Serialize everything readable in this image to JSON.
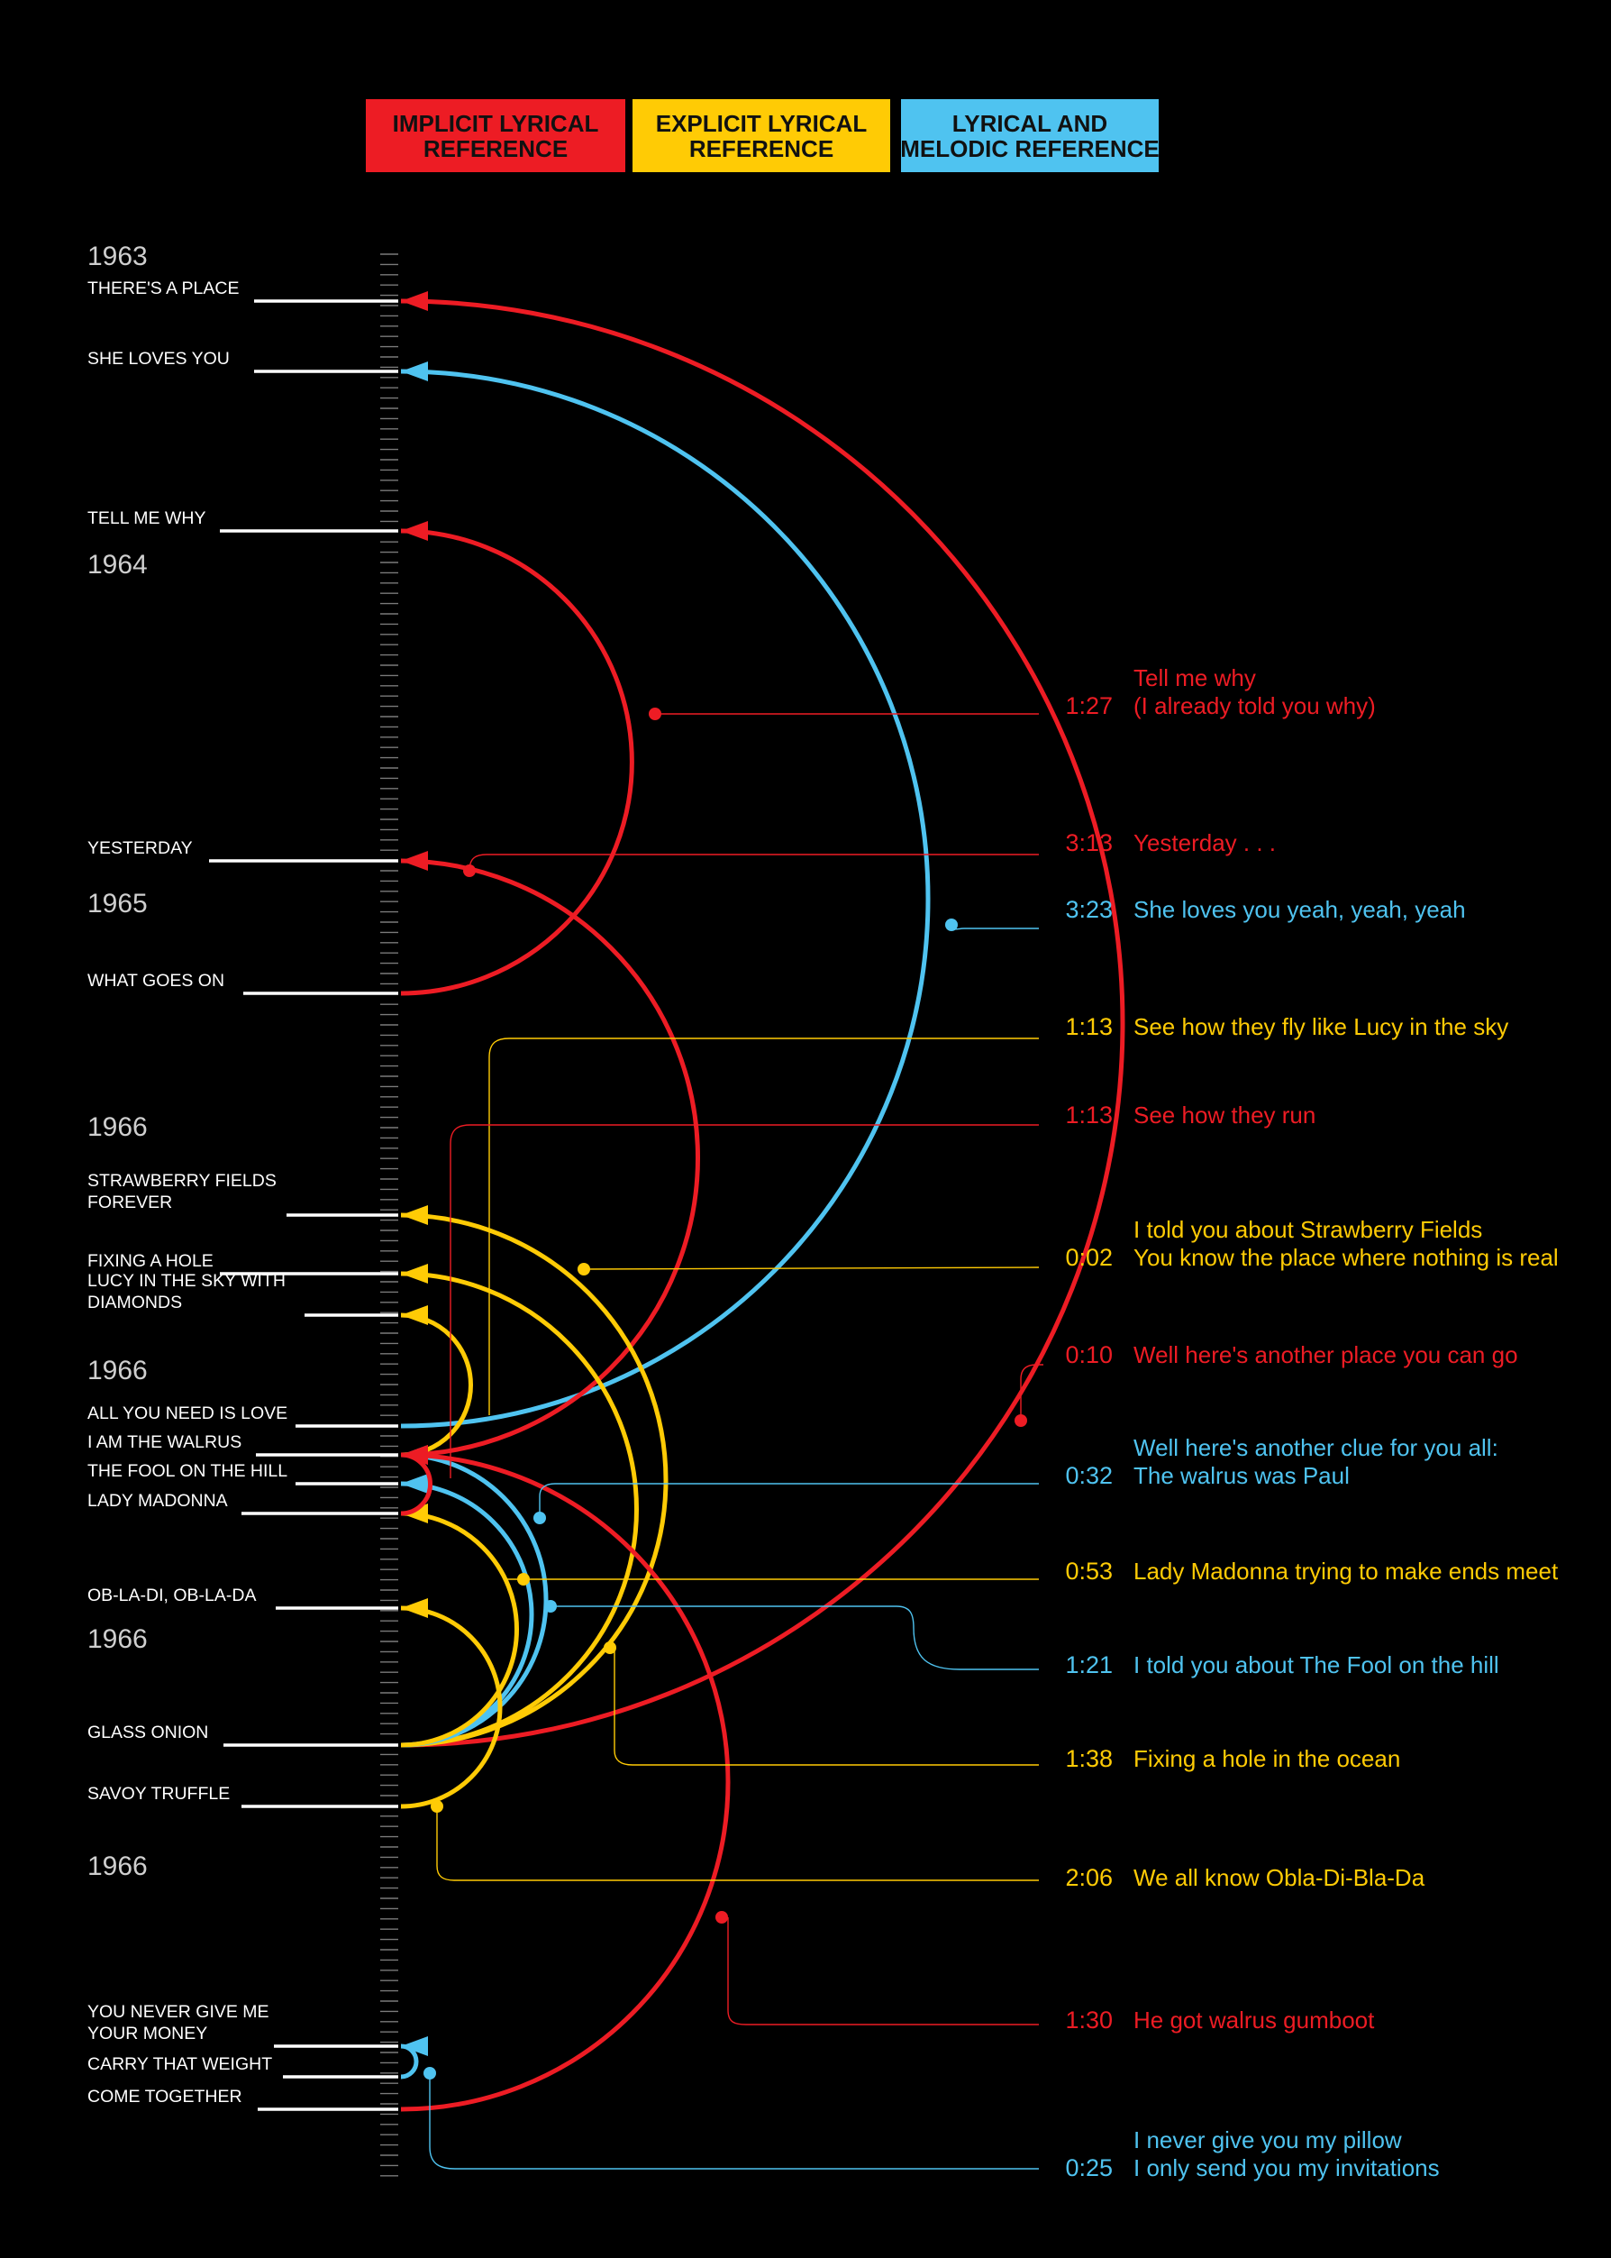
{
  "colors": {
    "background": "#000000",
    "implicit": "#ED1C24",
    "explicit": "#FFCB05",
    "melodic": "#4FC3F0",
    "song_text": "#FFFFFF",
    "year_text": "#CFCFCF",
    "legend_text": "#111111"
  },
  "legend": [
    {
      "key": "implicit",
      "lines": [
        "IMPLICIT LYRICAL",
        "REFERENCE"
      ]
    },
    {
      "key": "explicit",
      "lines": [
        "EXPLICIT LYRICAL",
        "REFERENCE"
      ]
    },
    {
      "key": "melodic",
      "lines": [
        "LYRICAL AND",
        "MELODIC REFERENCE"
      ]
    }
  ],
  "years": [
    "1963",
    "1964",
    "1965",
    "1966",
    "1966",
    "1966",
    "1966"
  ],
  "songs": [
    {
      "id": "theres-a-place",
      "lines": [
        "THERE'S A PLACE"
      ]
    },
    {
      "id": "she-loves-you",
      "lines": [
        "SHE LOVES YOU"
      ]
    },
    {
      "id": "tell-me-why",
      "lines": [
        "TELL ME WHY"
      ]
    },
    {
      "id": "yesterday",
      "lines": [
        "YESTERDAY"
      ]
    },
    {
      "id": "what-goes-on",
      "lines": [
        "WHAT GOES ON"
      ]
    },
    {
      "id": "strawberry-fields-forever",
      "lines": [
        "STRAWBERRY FIELDS",
        "FOREVER"
      ]
    },
    {
      "id": "fixing-a-hole",
      "lines": [
        "FIXING A HOLE"
      ]
    },
    {
      "id": "lucy-in-the-sky",
      "lines": [
        "LUCY IN THE SKY WITH",
        "DIAMONDS"
      ]
    },
    {
      "id": "all-you-need-is-love",
      "lines": [
        "ALL YOU NEED IS LOVE"
      ]
    },
    {
      "id": "i-am-the-walrus",
      "lines": [
        "I AM THE WALRUS"
      ]
    },
    {
      "id": "the-fool-on-the-hill",
      "lines": [
        "THE FOOL ON THE HILL"
      ]
    },
    {
      "id": "lady-madonna",
      "lines": [
        "LADY MADONNA"
      ]
    },
    {
      "id": "ob-la-di",
      "lines": [
        "OB-LA-DI, OB-LA-DA"
      ]
    },
    {
      "id": "glass-onion",
      "lines": [
        "GLASS ONION"
      ]
    },
    {
      "id": "savoy-truffle",
      "lines": [
        "SAVOY TRUFFLE"
      ]
    },
    {
      "id": "you-never-give-me-your-money",
      "lines": [
        "YOU NEVER GIVE ME",
        "YOUR MONEY"
      ]
    },
    {
      "id": "carry-that-weight",
      "lines": [
        "CARRY THAT WEIGHT"
      ]
    },
    {
      "id": "come-together",
      "lines": [
        "COME TOGETHER"
      ]
    }
  ],
  "references": [
    {
      "id": "tell-me-why-ref",
      "type": "implicit",
      "time": "1:27",
      "lines": [
        "Tell me why",
        "(I already told you why)"
      ]
    },
    {
      "id": "yesterday-ref",
      "type": "implicit",
      "time": "3:13",
      "lines": [
        "Yesterday . . ."
      ]
    },
    {
      "id": "she-loves-you-ref",
      "type": "melodic",
      "time": "3:23",
      "lines": [
        "She loves you yeah, yeah, yeah"
      ]
    },
    {
      "id": "lucy-ref",
      "type": "explicit",
      "time": "1:13",
      "lines": [
        "See how they fly like Lucy in the sky"
      ]
    },
    {
      "id": "see-how-they-run-ref",
      "type": "implicit",
      "time": "1:13",
      "lines": [
        "See how they run"
      ]
    },
    {
      "id": "strawberry-ref",
      "type": "explicit",
      "time": "0:02",
      "lines": [
        "I told you about Strawberry Fields",
        "You know the place where nothing is real"
      ]
    },
    {
      "id": "another-place-ref",
      "type": "implicit",
      "time": "0:10",
      "lines": [
        "Well here's another place you can go"
      ]
    },
    {
      "id": "walrus-ref",
      "type": "melodic",
      "time": "0:32",
      "lines": [
        "Well here's another clue for you all:",
        "The walrus was Paul"
      ]
    },
    {
      "id": "lady-madonna-ref",
      "type": "explicit",
      "time": "0:53",
      "lines": [
        "Lady Madonna trying to make ends meet"
      ]
    },
    {
      "id": "fool-ref",
      "type": "melodic",
      "time": "1:21",
      "lines": [
        "I told you about The Fool on the hill"
      ]
    },
    {
      "id": "fixing-a-hole-ref",
      "type": "explicit",
      "time": "1:38",
      "lines": [
        "Fixing a hole in the ocean"
      ]
    },
    {
      "id": "obladi-ref",
      "type": "explicit",
      "time": "2:06",
      "lines": [
        "We all know Obla-Di-Bla-Da"
      ]
    },
    {
      "id": "gumboot-ref",
      "type": "implicit",
      "time": "1:30",
      "lines": [
        "He got walrus gumboot"
      ]
    },
    {
      "id": "pillow-ref",
      "type": "melodic",
      "time": "0:25",
      "lines": [
        "I never give you my pillow",
        "I only send you my invitations"
      ]
    }
  ]
}
